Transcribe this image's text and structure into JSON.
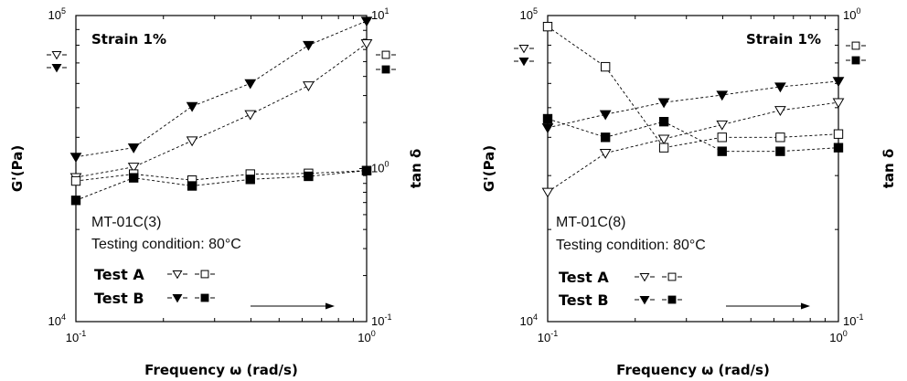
{
  "chart_data": [
    {
      "type": "scatter",
      "title": "Strain 1%",
      "sample": "MT-01C(3)",
      "condition": "Testing condition: 80°C",
      "xlabel": "Frequency ω (rad/s)",
      "ylabel_left": "G'(Pa)",
      "ylabel_right": "tan δ",
      "x_scale": "log",
      "y_left_scale": "log",
      "y_right_scale": "log",
      "xlim": [
        0.1,
        1
      ],
      "ylim_left": [
        10000,
        100000
      ],
      "ylim_right": [
        0.1,
        10
      ],
      "x_tick_labels": [
        {
          "base": "10",
          "exp": "-1"
        },
        {
          "base": "10",
          "exp": "0"
        }
      ],
      "y_left_tick_labels": [
        {
          "base": "10",
          "exp": "4"
        },
        {
          "base": "10",
          "exp": "5"
        }
      ],
      "y_right_tick_labels": [
        {
          "base": "10",
          "exp": "-1"
        },
        {
          "base": "10",
          "exp": "0"
        },
        {
          "base": "10",
          "exp": "1"
        }
      ],
      "legend": [
        {
          "label": "Test A",
          "markers": [
            "tri-down-open",
            "square-open"
          ]
        },
        {
          "label": "Test B",
          "markers": [
            "tri-down-filled",
            "square-filled"
          ]
        }
      ],
      "series": [
        {
          "test": "A",
          "quantity": "G'",
          "axis": "left",
          "marker": "tri-down-open",
          "x": [
            0.1,
            0.158,
            0.251,
            0.398,
            0.631,
            1.0
          ],
          "y": [
            29600,
            32000,
            39000,
            47500,
            59000,
            81000
          ]
        },
        {
          "test": "A",
          "quantity": "tan δ",
          "axis": "right",
          "marker": "square-open",
          "x": [
            0.1,
            0.158,
            0.251,
            0.398,
            0.631,
            1.0
          ],
          "y": [
            0.83,
            0.92,
            0.84,
            0.92,
            0.93,
            0.97
          ]
        },
        {
          "test": "B",
          "quantity": "G'",
          "axis": "left",
          "marker": "tri-down-filled",
          "x": [
            0.1,
            0.158,
            0.251,
            0.398,
            0.631,
            1.0
          ],
          "y": [
            34500,
            37000,
            50500,
            60000,
            80000,
            96000
          ]
        },
        {
          "test": "B",
          "quantity": "tan δ",
          "axis": "right",
          "marker": "square-filled",
          "x": [
            0.1,
            0.158,
            0.251,
            0.398,
            0.631,
            1.0
          ],
          "y": [
            0.62,
            0.87,
            0.77,
            0.85,
            0.89,
            0.97
          ]
        }
      ]
    },
    {
      "type": "scatter",
      "title": "Strain 1%",
      "sample": "MT-01C(8)",
      "condition": "Testing condition: 80°C",
      "xlabel": "Frequency ω (rad/s)",
      "ylabel_left": "G'(Pa)",
      "ylabel_right": "tan δ",
      "x_scale": "log",
      "y_left_scale": "log",
      "y_right_scale": "log",
      "xlim": [
        0.1,
        1
      ],
      "ylim_left": [
        10000,
        100000
      ],
      "ylim_right": [
        0.1,
        1
      ],
      "x_tick_labels": [
        {
          "base": "10",
          "exp": "-1"
        },
        {
          "base": "10",
          "exp": "0"
        }
      ],
      "y_left_tick_labels": [
        {
          "base": "10",
          "exp": "4"
        },
        {
          "base": "10",
          "exp": "5"
        }
      ],
      "y_right_tick_labels": [
        {
          "base": "10",
          "exp": "-1"
        },
        {
          "base": "10",
          "exp": "0"
        }
      ],
      "legend": [
        {
          "label": "Test A",
          "markers": [
            "tri-down-open",
            "square-open"
          ]
        },
        {
          "label": "Test B",
          "markers": [
            "tri-down-filled",
            "square-filled"
          ]
        }
      ],
      "series": [
        {
          "test": "A",
          "quantity": "G'",
          "axis": "left",
          "marker": "tri-down-open",
          "x": [
            0.1,
            0.158,
            0.251,
            0.398,
            0.631,
            1.0
          ],
          "y": [
            26500,
            35500,
            39500,
            44000,
            49000,
            52000
          ]
        },
        {
          "test": "A",
          "quantity": "tan δ",
          "axis": "right",
          "marker": "square-open",
          "x": [
            0.1,
            0.158,
            0.251,
            0.398,
            0.631,
            1.0
          ],
          "y": [
            0.92,
            0.68,
            0.37,
            0.4,
            0.4,
            0.41
          ]
        },
        {
          "test": "B",
          "quantity": "G'",
          "axis": "left",
          "marker": "tri-down-filled",
          "x": [
            0.1,
            0.158,
            0.251,
            0.398,
            0.631,
            1.0
          ],
          "y": [
            43000,
            47500,
            52000,
            55000,
            58500,
            61000
          ]
        },
        {
          "test": "B",
          "quantity": "tan δ",
          "axis": "right",
          "marker": "square-filled",
          "x": [
            0.1,
            0.158,
            0.251,
            0.398,
            0.631,
            1.0
          ],
          "y": [
            0.46,
            0.4,
            0.45,
            0.36,
            0.36,
            0.37
          ]
        }
      ]
    }
  ]
}
